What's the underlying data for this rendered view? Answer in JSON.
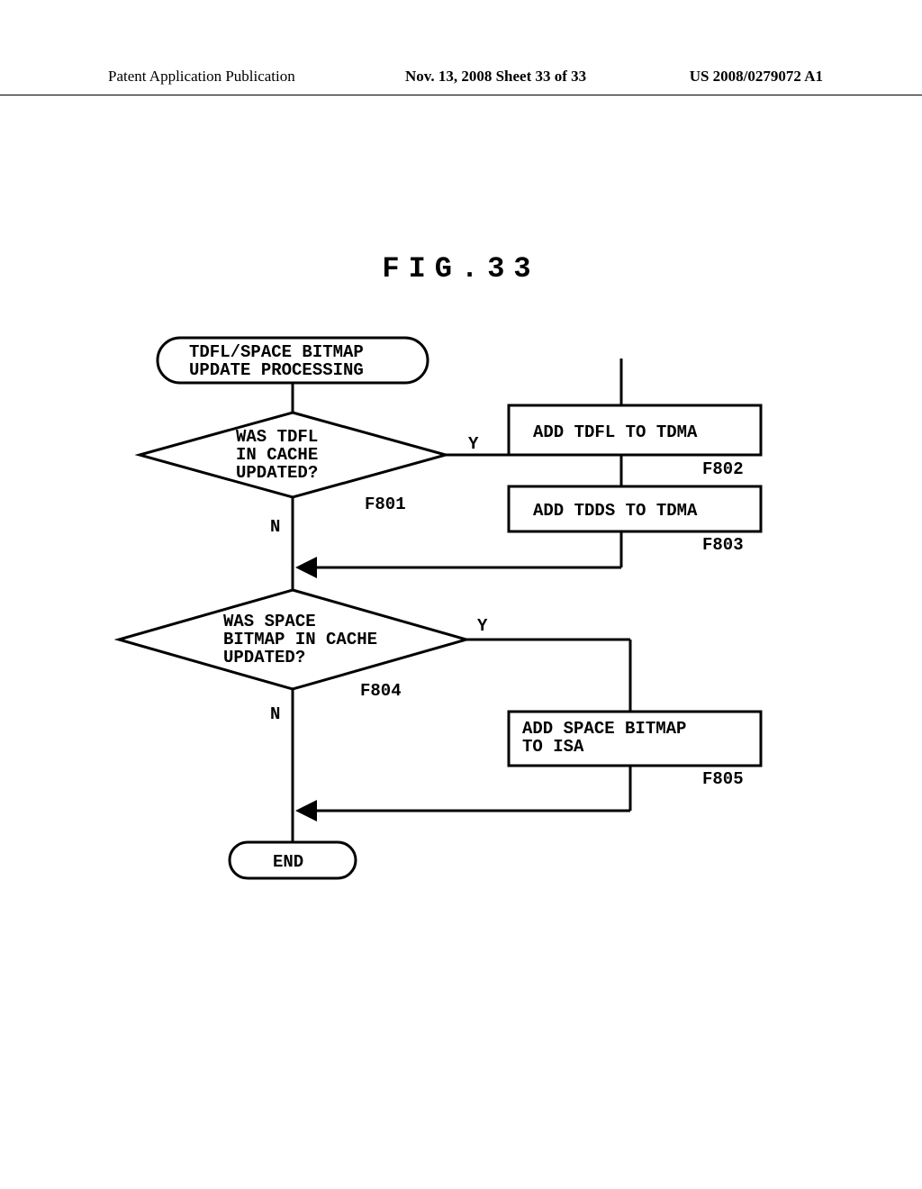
{
  "header": {
    "left": "Patent Application Publication",
    "mid": "Nov. 13, 2008  Sheet 33 of 33",
    "right": "US 2008/0279072 A1"
  },
  "figure_title": "FIG.33",
  "flowchart": {
    "type": "flowchart",
    "stroke": "#000000",
    "stroke_width": 3,
    "text_color": "#000000",
    "nodes": {
      "start": {
        "text": "TDFL/SPACE BITMAP\nUPDATE PROCESSING"
      },
      "d1": {
        "text": "WAS TDFL\nIN CACHE\nUPDATED?",
        "ref": "F801"
      },
      "p1": {
        "text": "ADD TDFL TO TDMA",
        "ref": "F802"
      },
      "p2": {
        "text": "ADD TDDS TO TDMA",
        "ref": "F803"
      },
      "d2": {
        "text": "WAS SPACE\nBITMAP IN CACHE\nUPDATED?",
        "ref": "F804"
      },
      "p3": {
        "text": "ADD SPACE BITMAP\nTO ISA",
        "ref": "F805"
      },
      "end": {
        "text": "END"
      }
    },
    "edges": {
      "yes": "Y",
      "no": "N"
    }
  }
}
